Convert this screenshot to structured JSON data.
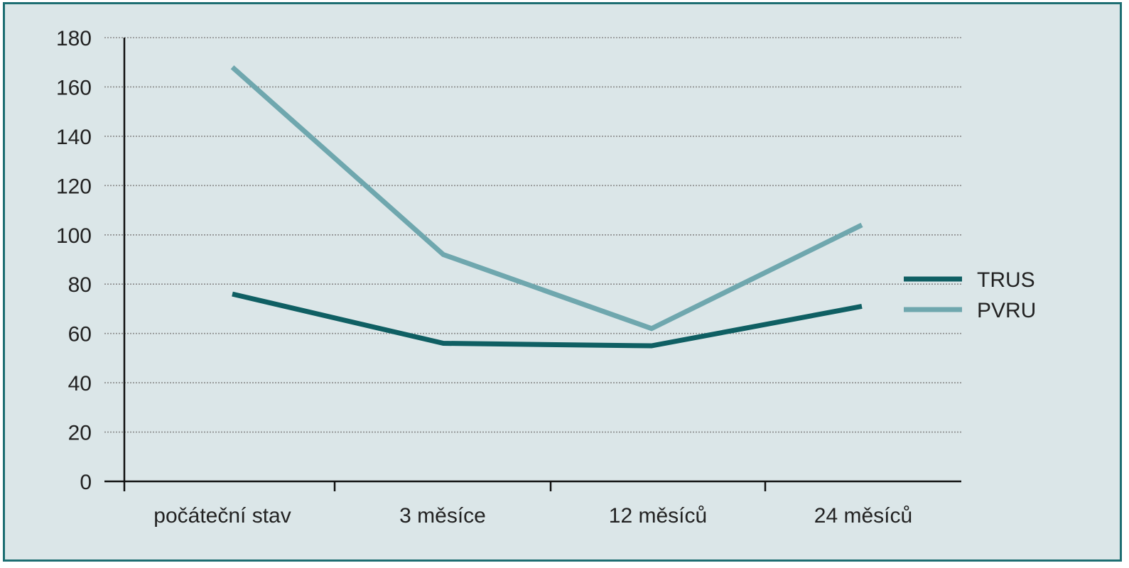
{
  "chart_data": {
    "type": "line",
    "title": "",
    "xlabel": "",
    "ylabel": "",
    "categories": [
      "počáteční stav",
      "3 měsíce",
      "12 měsíců",
      "24 měsíců"
    ],
    "y_ticks": [
      "0",
      "20",
      "40",
      "60",
      "80",
      "100",
      "120",
      "140",
      "160",
      "180"
    ],
    "ylim": [
      0,
      180
    ],
    "grid": true,
    "legend_position": "right",
    "series": [
      {
        "name": "TRUS",
        "values": [
          76,
          56,
          55,
          71
        ],
        "color": "#0f5f63"
      },
      {
        "name": "PVRU",
        "values": [
          168,
          92,
          62,
          104
        ],
        "color": "#6fa7ae"
      }
    ]
  },
  "colors": {
    "background": "#dbe6e8",
    "border": "#1d6e72",
    "axis": "#111111",
    "grid": "#8a8a8a"
  }
}
